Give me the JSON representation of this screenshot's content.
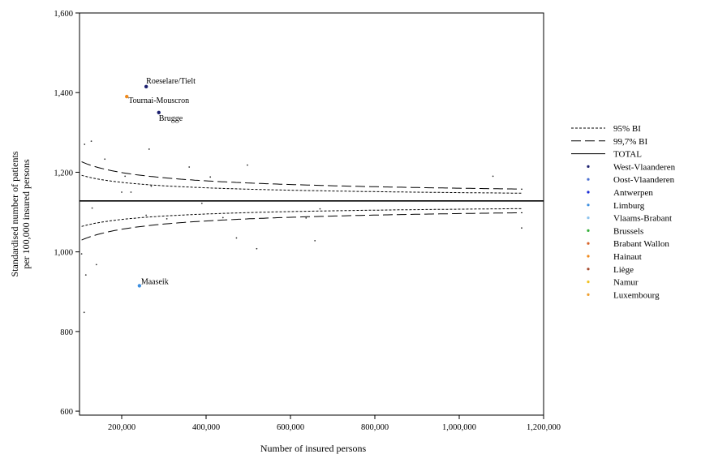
{
  "chart_data": {
    "type": "scatter",
    "xlabel": "Number of insured persons",
    "ylabel_lines": [
      "Standardised number of patients",
      "per 100,000 insured persons"
    ],
    "xlim": [
      100000,
      1200000
    ],
    "ylim": [
      590,
      1600
    ],
    "x_ticks": [
      {
        "value": 200000,
        "label": "200,000"
      },
      {
        "value": 400000,
        "label": "400,000"
      },
      {
        "value": 600000,
        "label": "600,000"
      },
      {
        "value": 800000,
        "label": "800,000"
      },
      {
        "value": 1000000,
        "label": "1,000,000"
      },
      {
        "value": 1200000,
        "label": "1,200,000"
      }
    ],
    "y_ticks": [
      {
        "value": 600,
        "label": "600"
      },
      {
        "value": 800,
        "label": "800"
      },
      {
        "value": 1000,
        "label": "1,000"
      },
      {
        "value": 1200,
        "label": "1,200"
      },
      {
        "value": 1400,
        "label": "1,400"
      },
      {
        "value": 1600,
        "label": "1,600"
      }
    ],
    "total": 1128,
    "ci_x_range": [
      105000,
      1150000
    ],
    "legend": [
      {
        "label": "95% BI",
        "kind": "short-dash"
      },
      {
        "label": "99,7% BI",
        "kind": "long-dash"
      },
      {
        "label": "TOTAL",
        "kind": "solid"
      },
      {
        "label": "West-Vlaanderen",
        "kind": "dot",
        "color": "#1b1f6e"
      },
      {
        "label": "Oost-Vlaanderen",
        "kind": "dot",
        "color": "#4a6fd1"
      },
      {
        "label": "Antwerpen",
        "kind": "dot",
        "color": "#1a2bd6"
      },
      {
        "label": "Limburg",
        "kind": "dot",
        "color": "#3d8fe0"
      },
      {
        "label": "Vlaams-Brabant",
        "kind": "dot",
        "color": "#8cc3ee"
      },
      {
        "label": "Brussels",
        "kind": "dot",
        "color": "#35b03a"
      },
      {
        "label": "Brabant Wallon",
        "kind": "dot",
        "color": "#d8642a"
      },
      {
        "label": "Hainaut",
        "kind": "dot",
        "color": "#f08a1c"
      },
      {
        "label": "Liège",
        "kind": "dot",
        "color": "#a64a2e"
      },
      {
        "label": "Namur",
        "kind": "dot",
        "color": "#f2c222"
      },
      {
        "label": "Luxembourg",
        "kind": "dot",
        "color": "#f0a030"
      }
    ],
    "labeled_points": [
      {
        "label": "Roeselare/Tielt",
        "x": 258000,
        "y": 1415,
        "color": "#1b1f6e"
      },
      {
        "label": "Tournai-Mouscron",
        "x": 212000,
        "y": 1390,
        "color": "#f08a1c"
      },
      {
        "label": "Brugge",
        "x": 288000,
        "y": 1350,
        "color": "#1b1f6e"
      },
      {
        "label": "Maaseik",
        "x": 242000,
        "y": 915,
        "color": "#3d8fe0"
      }
    ],
    "small_points": [
      {
        "x": 112000,
        "y": 1270
      },
      {
        "x": 128000,
        "y": 1278
      },
      {
        "x": 160000,
        "y": 1233
      },
      {
        "x": 200000,
        "y": 1150
      },
      {
        "x": 208000,
        "y": 1190
      },
      {
        "x": 222000,
        "y": 1150
      },
      {
        "x": 265000,
        "y": 1258
      },
      {
        "x": 270000,
        "y": 1165
      },
      {
        "x": 360000,
        "y": 1213
      },
      {
        "x": 390000,
        "y": 1122
      },
      {
        "x": 410000,
        "y": 1188
      },
      {
        "x": 498000,
        "y": 1218
      },
      {
        "x": 1080000,
        "y": 1190
      },
      {
        "x": 130000,
        "y": 1110
      },
      {
        "x": 258000,
        "y": 1092
      },
      {
        "x": 307000,
        "y": 1083
      },
      {
        "x": 440000,
        "y": 1086
      },
      {
        "x": 472000,
        "y": 1035
      },
      {
        "x": 520000,
        "y": 1008
      },
      {
        "x": 637000,
        "y": 1085
      },
      {
        "x": 658000,
        "y": 1028
      },
      {
        "x": 670000,
        "y": 1108
      },
      {
        "x": 1148000,
        "y": 1060
      },
      {
        "x": 105000,
        "y": 995
      },
      {
        "x": 115000,
        "y": 942
      },
      {
        "x": 140000,
        "y": 968
      },
      {
        "x": 111000,
        "y": 848
      }
    ]
  }
}
